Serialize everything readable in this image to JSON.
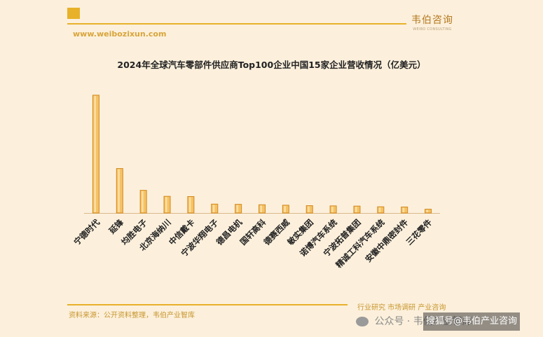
{
  "header": {
    "brand": "韦伯咨询",
    "brand_sub": "WEIBO CONSULTING",
    "website": "www.weibozixun.com"
  },
  "footer": {
    "source": "资料来源：公开资料整理，韦伯产业智库",
    "tagline": "行业研究 市场调研 产业咨询",
    "watermark_account": "公众号 · 韦伯产业智库",
    "watermark_sohu": "搜狐号@韦伯产业咨询"
  },
  "colors": {
    "bar_face": "#f6c265",
    "bar_edge": "#d2871e",
    "bar_highlight": "#fde7b4",
    "axis": "#d9b98a"
  },
  "chart_data": {
    "type": "bar",
    "title": "2024年全球汽车零部件供应商Top100企业中国15家企业营收情况（亿美元）",
    "xlabel": "",
    "ylabel": "",
    "categories": [
      "宁德时代",
      "延锋",
      "均胜电子",
      "北京海纳川",
      "中信戴卡",
      "宁波华翔电子",
      "德昌电机",
      "国轩高科",
      "德赛西威",
      "敏实集团",
      "诺博汽车系统",
      "宁波拓普集团",
      "精诚工科汽车系统",
      "安徽中鼎密封件",
      "三花零件"
    ],
    "values": [
      530,
      200,
      102,
      75,
      74,
      40,
      39,
      37,
      35,
      33,
      32,
      31,
      28,
      27,
      17
    ],
    "ylim": [
      0,
      580
    ],
    "grid": false,
    "legend": "none"
  }
}
